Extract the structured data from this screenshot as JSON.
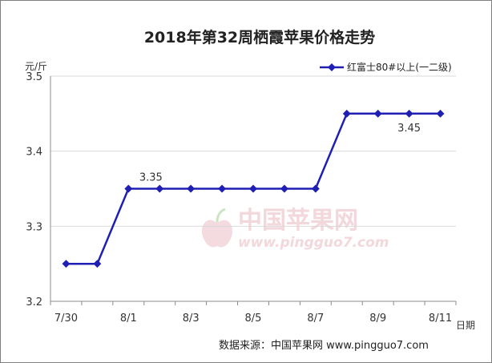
{
  "chart_data": {
    "type": "line",
    "title": "2018年第32周栖霞苹果价格走势",
    "ylabel": "元/斤",
    "xlabel": "日期",
    "ylim": [
      3.2,
      3.5
    ],
    "yticks": [
      "3.2",
      "3.3",
      "3.4",
      "3.5"
    ],
    "grid": true,
    "legend_position": "top-right",
    "categories": [
      "7/30",
      "7/31",
      "8/1",
      "8/2",
      "8/3",
      "8/4",
      "8/5",
      "8/6",
      "8/7",
      "8/8",
      "8/9",
      "8/10",
      "8/11"
    ],
    "xtick_labels": [
      "7/30",
      "",
      "8/1",
      "",
      "8/3",
      "",
      "8/5",
      "",
      "8/7",
      "",
      "8/9",
      "",
      "8/11"
    ],
    "series": [
      {
        "name": "红富士80#以上(一二级)",
        "color": "#1f1fb4",
        "values": [
          3.25,
          3.25,
          3.35,
          3.35,
          3.35,
          3.35,
          3.35,
          3.35,
          3.35,
          3.45,
          3.45,
          3.45,
          3.45
        ]
      }
    ],
    "annotations": [
      {
        "index": 2,
        "text": "3.35"
      },
      {
        "index": 11,
        "text": "3.45"
      }
    ]
  },
  "watermark": {
    "cn": "中国苹果网",
    "url": "www.pingguo7.com"
  },
  "source_text": "数据来源：中国苹果网 www.pingguo7.com"
}
